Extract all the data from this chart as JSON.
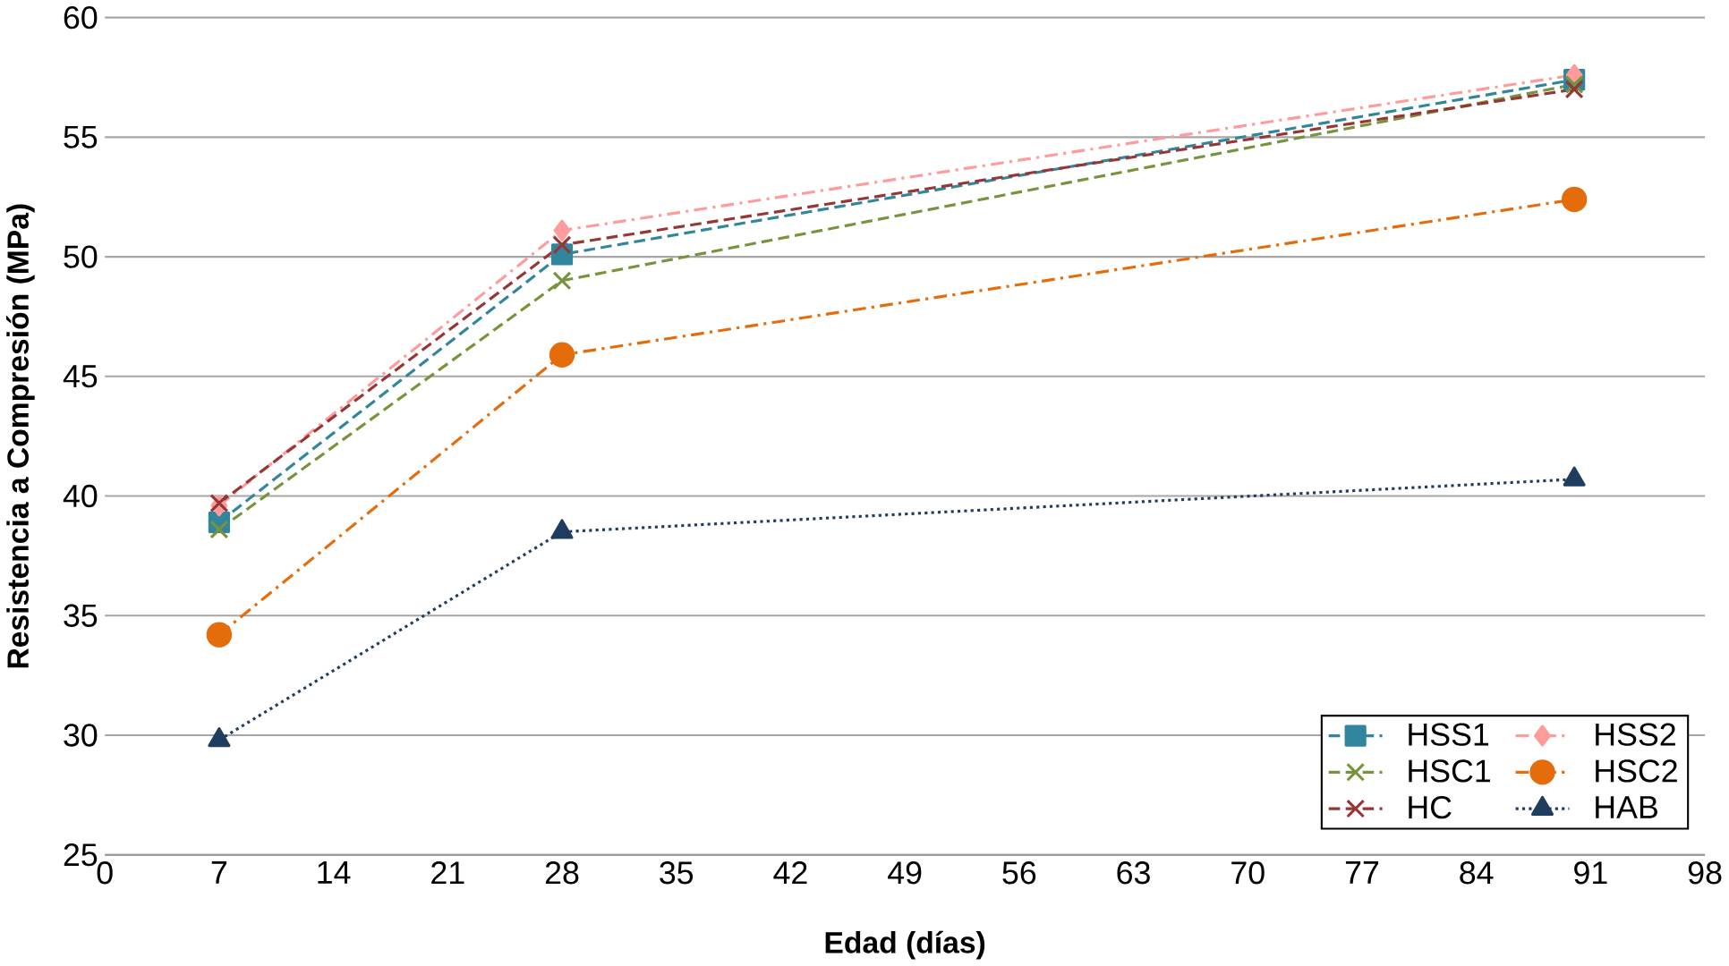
{
  "chart_data": {
    "type": "line",
    "xlabel": "Edad (días)",
    "ylabel": "Resistencia a Compresión (MPa)",
    "x": [
      7,
      28,
      90
    ],
    "series": [
      {
        "name": "HSS1",
        "color": "#31859c",
        "marker": "square",
        "line_style": "dashed",
        "values": [
          38.9,
          50.1,
          57.4
        ]
      },
      {
        "name": "HSS2",
        "color": "#ff9b9b",
        "marker": "diamond",
        "line_style": "dashdot",
        "values": [
          39.6,
          51.1,
          57.6
        ]
      },
      {
        "name": "HSC1",
        "color": "#77933c",
        "marker": "cross",
        "line_style": "dashed",
        "values": [
          38.6,
          49.0,
          57.2
        ]
      },
      {
        "name": "HSC2",
        "color": "#e46c0a",
        "marker": "circle",
        "line_style": "dashdot",
        "values": [
          34.2,
          45.9,
          52.4
        ]
      },
      {
        "name": "HC",
        "color": "#953735",
        "marker": "cross",
        "line_style": "dashed",
        "values": [
          39.7,
          50.5,
          57.0
        ]
      },
      {
        "name": "HAB",
        "color": "#1f3d5f",
        "marker": "triangle",
        "line_style": "dotted",
        "values": [
          29.8,
          38.5,
          40.7
        ]
      }
    ],
    "xlim": [
      0,
      98
    ],
    "xticks": [
      0,
      7,
      14,
      21,
      28,
      35,
      42,
      49,
      56,
      63,
      70,
      77,
      84,
      91,
      98
    ],
    "ylim": [
      25,
      60
    ],
    "yticks": [
      25,
      30,
      35,
      40,
      45,
      50,
      55,
      60
    ],
    "grid": "y",
    "legend": "bottom right"
  }
}
